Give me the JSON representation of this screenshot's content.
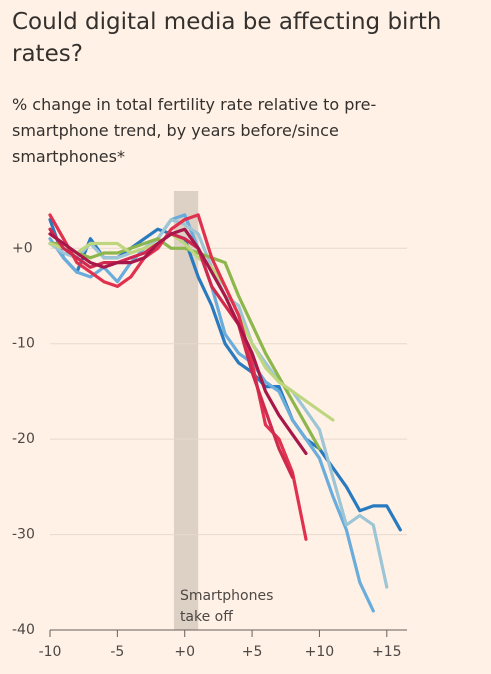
{
  "chart_data": {
    "type": "line",
    "title": "Could digital media be affecting birth rates?",
    "subtitle": "% change in total fertility rate relative to pre-smartphone trend, by years before/since smartphones*",
    "x": [
      -10,
      -9,
      -8,
      -7,
      -6,
      -5,
      -4,
      -3,
      -2,
      -1,
      0,
      1,
      2,
      3,
      4,
      5,
      6,
      7,
      8,
      9,
      10,
      11,
      12,
      13,
      14,
      15,
      16
    ],
    "series": [
      {
        "color": "#2a7ac0",
        "values": [
          3,
          -1,
          -2.5,
          1,
          -1,
          -1,
          0,
          1,
          2,
          1.5,
          1,
          -3,
          -6,
          -10,
          -12,
          -13,
          -14.5,
          -14.5,
          -18,
          -20,
          -21,
          -23,
          -25,
          -27.5,
          -27,
          -27,
          -29.5
        ]
      },
      {
        "color": "#6aacdc",
        "values": [
          1,
          -1,
          -2.5,
          -3,
          -2,
          -3.5,
          -1.5,
          0,
          1,
          3,
          3.5,
          0,
          -4,
          -9,
          -11,
          -12,
          -14,
          -15,
          -18,
          -20,
          -22,
          -26,
          -29.5,
          -35,
          -38,
          null,
          null
        ]
      },
      {
        "color": "#9cc5d6",
        "values": [
          0.5,
          -0.5,
          -1,
          0.5,
          -1,
          -1,
          -0.5,
          0,
          1,
          3,
          2.5,
          1.5,
          -2,
          -5,
          -6,
          -10,
          -12,
          -14,
          -15,
          -17,
          -19,
          -24,
          -29,
          -28,
          -29,
          -35.5,
          null
        ]
      },
      {
        "color": "#8db64d",
        "values": [
          0.5,
          0.5,
          -0.5,
          -1,
          -0.5,
          -0.5,
          0,
          0.5,
          1,
          0,
          0,
          -0.5,
          -1,
          -1.5,
          -5,
          -8,
          -11,
          -13.5,
          -16,
          -18.5,
          -21,
          null,
          null,
          null,
          null,
          null,
          null
        ]
      },
      {
        "color": "#bed67f",
        "values": [
          0.5,
          0,
          -0.5,
          0.5,
          0.5,
          0.5,
          -0.5,
          0,
          0.5,
          1.5,
          0.5,
          -1,
          -2,
          -4,
          -7,
          -10,
          -12.5,
          -14,
          -15,
          -16,
          -17,
          -18,
          null,
          null,
          null,
          null,
          null
        ]
      },
      {
        "color": "#e0324e",
        "values": [
          3.5,
          1,
          -1.5,
          -2.5,
          -3.5,
          -4,
          -3,
          -1,
          0,
          2,
          3,
          3.5,
          -1,
          -4,
          -7,
          -12,
          -18.5,
          -20,
          -23.5,
          -30.5,
          null,
          null,
          null,
          null,
          null,
          null,
          null
        ]
      },
      {
        "color": "#d0294f",
        "values": [
          2,
          0,
          -1,
          -2,
          -1.5,
          -1.5,
          -1,
          -0.5,
          0.5,
          1.5,
          1,
          0,
          -4,
          -6,
          -8,
          -13,
          -17,
          -21,
          -24,
          null,
          null,
          null,
          null,
          null,
          null,
          null,
          null
        ]
      },
      {
        "color": "#a8174a",
        "values": [
          1.5,
          0.5,
          -0.5,
          -1.5,
          -2,
          -1.5,
          -1.5,
          -1,
          0.5,
          1.5,
          2,
          0,
          -2.5,
          -5,
          -8,
          -11,
          -15,
          -17.5,
          -19.5,
          -21.5,
          null,
          null,
          null,
          null,
          null,
          null,
          null
        ]
      }
    ],
    "xlim": [
      -10,
      16.5
    ],
    "ylim": [
      -40,
      6
    ],
    "xticks": [
      -10,
      -5,
      {
        "value": 0,
        "label": "+0"
      },
      {
        "value": 5,
        "label": "+5"
      },
      {
        "value": 10,
        "label": "+10"
      },
      {
        "value": 15,
        "label": "+15"
      }
    ],
    "yticks": [
      {
        "value": 0,
        "label": "+0"
      },
      -10,
      -20,
      -30,
      -40
    ],
    "grid": true,
    "shade": {
      "from": -0.8,
      "to": 1,
      "color": "#ddd0c4",
      "label": [
        "Smartphones",
        "take off"
      ]
    }
  }
}
